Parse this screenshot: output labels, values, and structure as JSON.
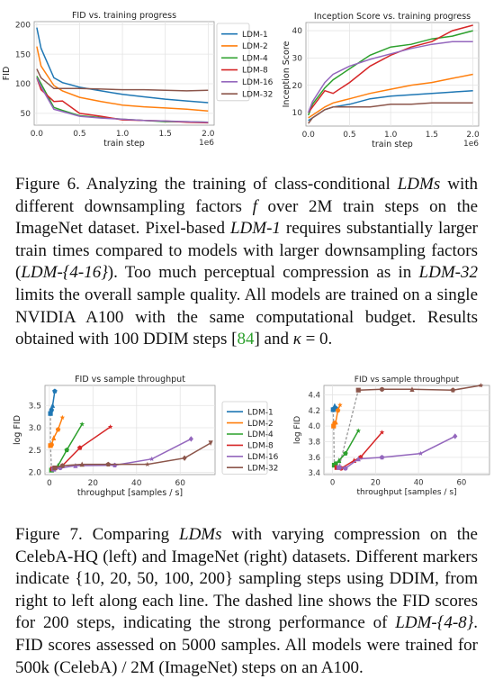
{
  "figure6": {
    "caption_parts": [
      {
        "t": "Figure 6. Analyzing the training of class-conditional "
      },
      {
        "t": "LDMs",
        "i": true
      },
      {
        "t": " with different downsampling factors "
      },
      {
        "t": "f",
        "i": true
      },
      {
        "t": " over 2M train steps on the ImageNet dataset. Pixel-based "
      },
      {
        "t": "LDM-1",
        "i": true
      },
      {
        "t": " requires substantially larger train times compared to models with larger downsampling factors ("
      },
      {
        "t": "LDM-{4-16}",
        "i": true
      },
      {
        "t": "). Too much perceptual compression as in "
      },
      {
        "t": "LDM-32",
        "i": true
      },
      {
        "t": " limits the overall sample quality. All models are trained on a single NVIDIA A100 with the same computational budget. Results obtained with 100 DDIM steps ["
      },
      {
        "t": "84",
        "c": true
      },
      {
        "t": "] and "
      },
      {
        "t": "κ",
        "i": true
      },
      {
        "t": " = 0."
      }
    ]
  },
  "figure7": {
    "caption_parts": [
      {
        "t": "Figure 7. Comparing "
      },
      {
        "t": "LDMs",
        "i": true
      },
      {
        "t": " with varying compression on the CelebA-HQ (left) and ImageNet (right) datasets. Different markers indicate {10, 20, 50, 100, 200} sampling steps using DDIM, from right to left along each line. The dashed line shows the FID scores for 200 steps, indicating the strong performance of "
      },
      {
        "t": "LDM-{4-8}",
        "i": true
      },
      {
        "t": ". FID scores assessed on 5000 samples. All models were trained for 500k (CelebA) / 2M (ImageNet) steps on an A100."
      }
    ]
  },
  "colors": {
    "LDM-1": "#1f77b4",
    "LDM-2": "#ff7f0e",
    "LDM-4": "#2ca02c",
    "LDM-8": "#d62728",
    "LDM-16": "#9467bd",
    "LDM-32": "#8c564b",
    "cite": "#2ca02c"
  },
  "chart_data": [
    {
      "type": "line",
      "title": "FID vs. training progress",
      "xlabel": "train step",
      "ylabel": "FID",
      "x_multiplier_label": "1e6",
      "xticks": [
        "0.0",
        "0.5",
        "1.0",
        "1.5",
        "2.0"
      ],
      "yticks": [
        "50",
        "100",
        "150",
        "200"
      ],
      "xlim": [
        -0.03,
        2.07
      ],
      "ylim": [
        30,
        205
      ],
      "x": [
        0,
        0.05,
        0.2,
        0.3,
        0.5,
        0.75,
        1.0,
        1.25,
        1.5,
        1.75,
        2.0
      ],
      "series": [
        {
          "name": "LDM-1",
          "values": [
            195,
            160,
            110,
            102,
            94,
            88,
            82,
            78,
            74,
            71,
            68
          ]
        },
        {
          "name": "LDM-2",
          "values": [
            163,
            130,
            97,
            88,
            77,
            70,
            64,
            61,
            59,
            57,
            54
          ]
        },
        {
          "name": "LDM-4",
          "values": [
            113,
            100,
            60,
            55,
            46,
            43,
            40,
            38,
            36,
            36,
            35
          ]
        },
        {
          "name": "LDM-8",
          "values": [
            110,
            90,
            70,
            71,
            50,
            45,
            39,
            38,
            37,
            35,
            34
          ]
        },
        {
          "name": "LDM-16",
          "values": [
            110,
            95,
            57,
            53,
            45,
            42,
            40,
            38,
            37,
            36,
            35
          ]
        },
        {
          "name": "LDM-32",
          "values": [
            125,
            110,
            92,
            92,
            92,
            91,
            90,
            90,
            89,
            88,
            89
          ]
        }
      ],
      "legend": {
        "position": "right",
        "entries": [
          "LDM-1",
          "LDM-2",
          "LDM-4",
          "LDM-8",
          "LDM-16",
          "LDM-32"
        ]
      }
    },
    {
      "type": "line",
      "title": "Inception Score vs. training progress",
      "xlabel": "train step",
      "ylabel": "Inception Score",
      "x_multiplier_label": "1e6",
      "xticks": [
        "0.0",
        "0.5",
        "1.0",
        "1.5",
        "2.0"
      ],
      "yticks": [
        "10",
        "20",
        "30",
        "40"
      ],
      "xlim": [
        -0.03,
        2.07
      ],
      "ylim": [
        5,
        43
      ],
      "x": [
        0,
        0.05,
        0.2,
        0.3,
        0.5,
        0.75,
        1.0,
        1.25,
        1.5,
        1.75,
        2.0
      ],
      "series": [
        {
          "name": "LDM-1",
          "values": [
            7,
            8,
            11,
            12,
            13,
            15,
            16,
            16.5,
            17,
            17.5,
            18
          ]
        },
        {
          "name": "LDM-2",
          "values": [
            8,
            9,
            12,
            13.5,
            15,
            17,
            18.5,
            20,
            21,
            22.5,
            24
          ]
        },
        {
          "name": "LDM-4",
          "values": [
            9,
            13,
            19,
            22,
            26,
            31,
            34,
            35,
            37,
            38,
            40
          ]
        },
        {
          "name": "LDM-8",
          "values": [
            10,
            12,
            18,
            17,
            21,
            27,
            31,
            34,
            36,
            40,
            42
          ]
        },
        {
          "name": "LDM-16",
          "values": [
            10,
            14,
            21,
            24,
            27,
            29.5,
            31.5,
            33.5,
            35,
            36,
            36
          ]
        },
        {
          "name": "LDM-32",
          "values": [
            6,
            8,
            11,
            12,
            12,
            12,
            13,
            13,
            13.5,
            13.5,
            13.5
          ]
        }
      ]
    },
    {
      "type": "line",
      "title": "FID vs sample throughput",
      "xlabel": "throughput [samples / s]",
      "ylabel": "log FID",
      "xticks": [
        "0",
        "20",
        "40",
        "60"
      ],
      "yticks": [
        "2.0",
        "2.5",
        "3.0",
        "3.5"
      ],
      "xlim": [
        -2,
        76
      ],
      "ylim": [
        1.95,
        3.95
      ],
      "series": [
        {
          "name": "LDM-1",
          "points": [
            [
              0.5,
              3.32
            ],
            [
              1,
              3.4
            ],
            [
              1.5,
              3.5
            ],
            [
              2.5,
              3.82
            ]
          ]
        },
        {
          "name": "LDM-2",
          "points": [
            [
              0.5,
              2.6
            ],
            [
              1,
              2.62
            ],
            [
              2,
              2.77
            ],
            [
              4,
              2.96
            ],
            [
              6,
              3.23
            ]
          ]
        },
        {
          "name": "LDM-4",
          "points": [
            [
              1,
              2.05
            ],
            [
              2,
              2.08
            ],
            [
              4,
              2.15
            ],
            [
              8,
              2.5
            ],
            [
              15,
              3.08
            ]
          ]
        },
        {
          "name": "LDM-8",
          "points": [
            [
              1.5,
              2.08
            ],
            [
              3,
              2.1
            ],
            [
              6,
              2.15
            ],
            [
              14,
              2.55
            ],
            [
              28,
              3.02
            ]
          ]
        },
        {
          "name": "LDM-16",
          "points": [
            [
              2,
              2.07
            ],
            [
              5,
              2.1
            ],
            [
              12,
              2.15
            ],
            [
              30,
              2.16
            ],
            [
              47,
              2.3
            ],
            [
              65,
              2.75
            ]
          ]
        },
        {
          "name": "LDM-32",
          "points": [
            [
              2.5,
              2.1
            ],
            [
              6,
              2.15
            ],
            [
              15,
              2.18
            ],
            [
              27,
              2.18
            ],
            [
              45,
              2.18
            ],
            [
              62,
              2.32
            ],
            [
              74,
              2.66
            ]
          ]
        }
      ],
      "dashed_200_steps": [
        [
          0.5,
          3.32
        ],
        [
          0.5,
          2.6
        ],
        [
          1,
          2.05
        ],
        [
          1.5,
          2.08
        ],
        [
          2,
          2.07
        ],
        [
          2.5,
          2.1
        ],
        [
          6,
          2.15
        ]
      ],
      "legend": {
        "position": "right",
        "entries": [
          "LDM-1",
          "LDM-2",
          "LDM-4",
          "LDM-8",
          "LDM-16",
          "LDM-32"
        ]
      }
    },
    {
      "type": "line",
      "title": "FID vs sample throughput",
      "xlabel": "throughput [samples / s]",
      "ylabel": "log FID",
      "xticks": [
        "0",
        "20",
        "40",
        "60"
      ],
      "yticks": [
        "3.4",
        "3.6",
        "3.8",
        "4.0",
        "4.2",
        "4.4"
      ],
      "xlim": [
        -4,
        73
      ],
      "ylim": [
        3.38,
        4.52
      ],
      "series": [
        {
          "name": "LDM-1",
          "points": [
            [
              0.3,
              4.21
            ],
            [
              0.6,
              4.22
            ],
            [
              1,
              4.26
            ],
            [
              1.5,
              4.23
            ]
          ]
        },
        {
          "name": "LDM-2",
          "points": [
            [
              0.5,
              4.0
            ],
            [
              1,
              4.04
            ],
            [
              1.5,
              4.05
            ],
            [
              2.5,
              4.2
            ],
            [
              3.5,
              4.27
            ]
          ]
        },
        {
          "name": "LDM-4",
          "points": [
            [
              0.8,
              3.5
            ],
            [
              1.5,
              3.52
            ],
            [
              3,
              3.56
            ],
            [
              6,
              3.65
            ],
            [
              12,
              3.94
            ]
          ]
        },
        {
          "name": "LDM-8",
          "points": [
            [
              2,
              3.47
            ],
            [
              4,
              3.46
            ],
            [
              10,
              3.56
            ],
            [
              13,
              3.6
            ],
            [
              23,
              3.92
            ]
          ]
        },
        {
          "name": "LDM-16",
          "points": [
            [
              3,
              3.47
            ],
            [
              6,
              3.46
            ],
            [
              12,
              3.58
            ],
            [
              23,
              3.6
            ],
            [
              41,
              3.65
            ],
            [
              57,
              3.87
            ]
          ]
        },
        {
          "name": "LDM-32",
          "points": [
            [
              12,
              4.46
            ],
            [
              23,
              4.47
            ],
            [
              37,
              4.47
            ],
            [
              56,
              4.46
            ],
            [
              69,
              4.52
            ]
          ]
        }
      ],
      "dashed_200_steps": [
        [
          0.3,
          4.21
        ],
        [
          0.5,
          4.0
        ],
        [
          0.8,
          3.5
        ],
        [
          2,
          3.47
        ],
        [
          3,
          3.47
        ],
        [
          12,
          4.46
        ]
      ]
    }
  ]
}
